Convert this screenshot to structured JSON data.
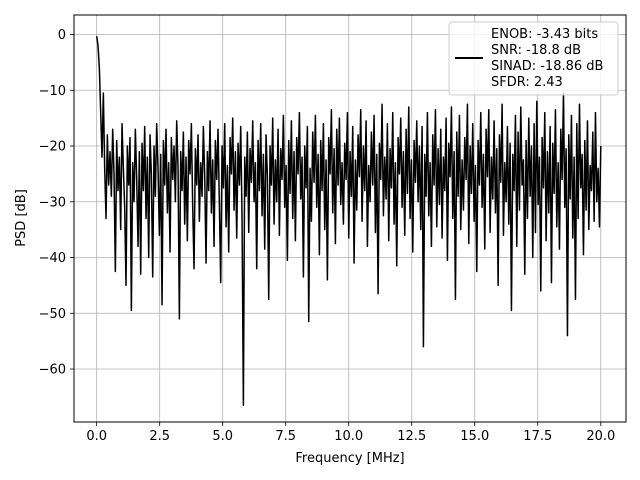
{
  "chart_data": {
    "type": "line",
    "xlabel": "Frequency [MHz]",
    "ylabel": "PSD [dB]",
    "xlim": [
      -0.9,
      21.0
    ],
    "ylim": [
      -69.5,
      3.5
    ],
    "x_ticks": [
      0.0,
      2.5,
      5.0,
      7.5,
      10.0,
      12.5,
      15.0,
      17.5,
      20.0
    ],
    "x_tick_labels": [
      "0.0",
      "2.5",
      "5.0",
      "7.5",
      "10.0",
      "12.5",
      "15.0",
      "17.5",
      "20.0"
    ],
    "y_ticks": [
      0,
      -10,
      -20,
      -30,
      -40,
      -50,
      -60
    ],
    "y_tick_labels": [
      "0",
      "−10",
      "−20",
      "−30",
      "−40",
      "−50",
      "−60"
    ],
    "grid": true,
    "legend_placement": "top-right",
    "series": [
      {
        "name": "ENOB: -3.43 bits\nSNR: -18.8 dB\nSINAD: -18.86 dB\nSFDR: 2.43",
        "color": "#000000",
        "x_range": [
          0.0,
          20.0
        ],
        "values": [
          -0.3,
          -2.0,
          -6.0,
          -14.0,
          -22.0,
          -10.5,
          -24.0,
          -33.0,
          -18.0,
          -27.0,
          -21.0,
          -29.0,
          -17.0,
          -25.0,
          -42.5,
          -19.0,
          -28.0,
          -22.0,
          -35.0,
          -16.0,
          -24.0,
          -31.0,
          -45.0,
          -20.0,
          -27.0,
          -18.5,
          -49.5,
          -23.0,
          -30.0,
          -17.0,
          -26.0,
          -38.0,
          -21.0,
          -43.0,
          -19.5,
          -28.0,
          -16.5,
          -33.0,
          -22.0,
          -40.0,
          -18.0,
          -25.0,
          -43.5,
          -20.0,
          -29.0,
          -16.0,
          -24.0,
          -36.0,
          -21.5,
          -48.5,
          -19.0,
          -27.0,
          -17.0,
          -32.0,
          -23.0,
          -39.0,
          -18.5,
          -26.0,
          -20.0,
          -30.0,
          -15.5,
          -24.0,
          -51.0,
          -21.0,
          -28.0,
          -17.5,
          -34.0,
          -22.0,
          -37.0,
          -19.0,
          -25.0,
          -16.0,
          -31.0,
          -42.0,
          -20.5,
          -27.0,
          -18.0,
          -33.5,
          -23.0,
          -29.0,
          -16.5,
          -25.5,
          -41.0,
          -21.0,
          -28.0,
          -15.5,
          -32.0,
          -22.5,
          -38.0,
          -19.0,
          -26.0,
          -17.0,
          -30.5,
          -44.5,
          -20.0,
          -27.5,
          -16.0,
          -34.5,
          -23.5,
          -39.0,
          -18.5,
          -25.0,
          -15.0,
          -31.5,
          -21.0,
          -36.5,
          -19.5,
          -27.0,
          -16.5,
          -33.0,
          -66.5,
          -22.0,
          -29.0,
          -17.5,
          -35.5,
          -20.5,
          -26.5,
          -15.5,
          -30.0,
          -23.0,
          -42.0,
          -19.0,
          -28.0,
          -16.0,
          -32.5,
          -21.5,
          -38.5,
          -18.0,
          -25.5,
          -47.5,
          -20.0,
          -27.0,
          -15.0,
          -34.0,
          -22.5,
          -30.0,
          -17.0,
          -36.0,
          -20.5,
          -26.0,
          -14.5,
          -31.0,
          -23.5,
          -40.5,
          -19.0,
          -28.5,
          -15.5,
          -33.0,
          -21.0,
          -37.0,
          -18.5,
          -25.0,
          -14.0,
          -29.5,
          -22.0,
          -43.5,
          -20.0,
          -27.5,
          -16.5,
          -51.5,
          -24.0,
          -33.5,
          -17.5,
          -26.5,
          -14.5,
          -31.0,
          -21.5,
          -39.5,
          -19.0,
          -28.0,
          -16.0,
          -35.0,
          -22.5,
          -44.0,
          -18.5,
          -25.0,
          -13.5,
          -32.0,
          -20.5,
          -37.5,
          -17.0,
          -27.0,
          -15.0,
          -30.5,
          -23.0,
          -34.0,
          -19.5,
          -26.0,
          -14.0,
          -36.5,
          -21.0,
          -29.0,
          -16.5,
          -41.0,
          -22.5,
          -31.5,
          -18.0,
          -25.5,
          -13.5,
          -33.5,
          -20.0,
          -28.0,
          -15.5,
          -38.0,
          -23.5,
          -30.0,
          -17.5,
          -27.0,
          -14.5,
          -35.5,
          -21.5,
          -46.5,
          -19.5,
          -26.0,
          -12.5,
          -32.5,
          -22.0,
          -29.5,
          -16.0,
          -37.0,
          -20.5,
          -27.5,
          -14.0,
          -34.0,
          -23.0,
          -41.5,
          -18.5,
          -25.0,
          -15.0,
          -31.0,
          -21.0,
          -36.0,
          -17.0,
          -28.5,
          -13.0,
          -33.0,
          -22.5,
          -39.0,
          -19.0,
          -26.5,
          -15.5,
          -30.0,
          -20.0,
          -35.0,
          -16.5,
          -56.0,
          -21.5,
          -29.0,
          -14.0,
          -32.5,
          -23.0,
          -38.0,
          -18.0,
          -27.0,
          -13.5,
          -34.5,
          -20.5,
          -30.5,
          -17.0,
          -36.5,
          -22.0,
          -28.0,
          -15.0,
          -40.5,
          -19.5,
          -25.5,
          -13.0,
          -33.0,
          -21.0,
          -47.5,
          -17.5,
          -29.0,
          -14.5,
          -35.0,
          -22.5,
          -31.5,
          -18.5,
          -26.0,
          -12.5,
          -37.5,
          -20.0,
          -28.5,
          -16.0,
          -33.5,
          -23.5,
          -42.5,
          -19.0,
          -27.0,
          -14.0,
          -31.0,
          -21.5,
          -38.5,
          -17.0,
          -25.5,
          -13.5,
          -35.5,
          -22.0,
          -29.5,
          -15.5,
          -32.0,
          -20.5,
          -45.0,
          -18.0,
          -26.5,
          -12.5,
          -36.0,
          -23.0,
          -30.0,
          -16.5,
          -34.0,
          -19.5,
          -49.5,
          -21.5,
          -28.0,
          -14.5,
          -38.0,
          -17.5,
          -31.5,
          -13.0,
          -27.0,
          -22.5,
          -43.0,
          -19.0,
          -33.0,
          -15.0,
          -29.0,
          -20.0,
          -40.0,
          -16.0,
          -35.5,
          -12.0,
          -30.5,
          -22.0,
          -46.0,
          -18.5,
          -27.5,
          -14.0,
          -37.0,
          -21.0,
          -32.0,
          -16.5,
          -44.5,
          -19.5,
          -28.5,
          -13.5,
          -34.5,
          -23.0,
          -38.5,
          -17.0,
          -26.0,
          -10.5,
          -31.0,
          -20.5,
          -54.0,
          -18.0,
          -29.5,
          -14.5,
          -36.5,
          -22.0,
          -47.5,
          -16.0,
          -33.0,
          -12.5,
          -27.5,
          -21.5,
          -39.5,
          -19.0,
          -31.5,
          -15.5,
          -35.0,
          -23.5,
          -28.0,
          -17.5,
          -33.5,
          -14.0,
          -30.0,
          -24.0,
          -34.5,
          -20.0
        ]
      }
    ]
  }
}
